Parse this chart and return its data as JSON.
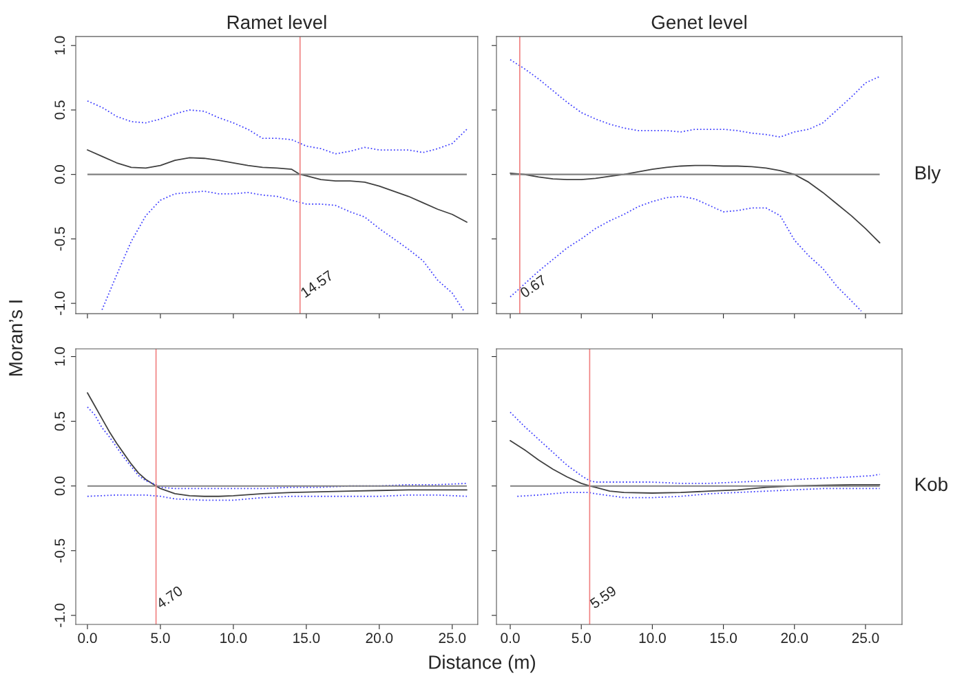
{
  "chart_data": [
    {
      "type": "line",
      "title": "Ramet level",
      "ylabel": "Moran’s I",
      "xlim": [
        -0.8,
        26.75
      ],
      "ylim": [
        -1.08,
        1.07
      ],
      "tick_labels": "y",
      "grid": false,
      "yticks": [
        {
          "value": -1,
          "label": "-1.0"
        },
        {
          "value": -0.5,
          "label": "-0.5"
        },
        {
          "value": 0,
          "label": "0.0"
        },
        {
          "value": 0.5,
          "label": "0.5"
        },
        {
          "value": 1,
          "label": "1.0"
        }
      ],
      "ref_lines": [
        {
          "axis": "y",
          "value": 0,
          "color": "#808080"
        },
        {
          "axis": "x",
          "value": 14.57,
          "label": "14.57",
          "color": "#f08080"
        }
      ],
      "series": [
        {
          "color": "#404040",
          "line_style": "solid",
          "x": [
            0,
            1,
            2,
            3,
            4,
            5,
            6,
            7,
            8,
            9,
            10,
            11,
            12,
            13,
            14,
            14.57,
            15,
            16,
            17,
            18,
            19,
            20,
            21,
            22,
            23,
            24,
            25,
            26
          ],
          "values": [
            0.19,
            0.14,
            0.09,
            0.055,
            0.05,
            0.07,
            0.11,
            0.13,
            0.125,
            0.11,
            0.09,
            0.07,
            0.055,
            0.05,
            0.04,
            0.0,
            -0.01,
            -0.04,
            -0.05,
            -0.05,
            -0.06,
            -0.09,
            -0.13,
            -0.17,
            -0.22,
            -0.27,
            -0.31,
            -0.37
          ]
        },
        {
          "color": "#4040ff",
          "line_style": "dotted",
          "x": [
            0,
            1,
            2,
            3,
            4,
            5,
            6,
            7,
            8,
            9,
            10,
            11,
            12,
            13,
            14,
            15,
            16,
            17,
            18,
            19,
            20,
            21,
            22,
            23,
            24,
            25,
            26
          ],
          "values": [
            0.57,
            0.52,
            0.45,
            0.41,
            0.4,
            0.43,
            0.47,
            0.5,
            0.49,
            0.44,
            0.4,
            0.35,
            0.28,
            0.28,
            0.27,
            0.22,
            0.2,
            0.16,
            0.18,
            0.21,
            0.19,
            0.19,
            0.19,
            0.17,
            0.2,
            0.24,
            0.35
          ]
        },
        {
          "color": "#4040ff",
          "line_style": "dotted",
          "x": [
            1,
            2,
            3,
            4,
            5,
            6,
            7,
            8,
            9,
            10,
            11,
            12,
            13,
            14,
            15,
            16,
            17,
            18,
            19,
            20,
            21,
            22,
            23,
            24,
            25,
            25.8
          ],
          "values": [
            -1.05,
            -0.78,
            -0.52,
            -0.32,
            -0.2,
            -0.15,
            -0.14,
            -0.13,
            -0.15,
            -0.15,
            -0.14,
            -0.16,
            -0.17,
            -0.2,
            -0.23,
            -0.23,
            -0.24,
            -0.29,
            -0.33,
            -0.42,
            -0.5,
            -0.58,
            -0.67,
            -0.82,
            -0.92,
            -1.06
          ]
        }
      ]
    },
    {
      "type": "line",
      "title": "Genet level",
      "annotations": [
        "Bly"
      ],
      "xlim": [
        -0.97,
        27.57
      ],
      "ylim": [
        -1.08,
        1.07
      ],
      "tick_labels": false,
      "grid": false,
      "ref_lines": [
        {
          "axis": "y",
          "value": 0,
          "color": "#808080"
        },
        {
          "axis": "x",
          "value": 0.67,
          "label": "0.67",
          "color": "#f08080"
        }
      ],
      "series": [
        {
          "color": "#404040",
          "line_style": "solid",
          "x": [
            0,
            1,
            2,
            3,
            4,
            5,
            6,
            7,
            8,
            9,
            10,
            11,
            12,
            13,
            14,
            15,
            16,
            17,
            18,
            19,
            20,
            21,
            22,
            23,
            24,
            25,
            26
          ],
          "values": [
            0.01,
            0.0,
            -0.02,
            -0.035,
            -0.04,
            -0.04,
            -0.03,
            -0.015,
            0.0,
            0.02,
            0.04,
            0.055,
            0.065,
            0.07,
            0.07,
            0.065,
            0.065,
            0.06,
            0.05,
            0.03,
            0.0,
            -0.06,
            -0.14,
            -0.23,
            -0.32,
            -0.42,
            -0.53
          ]
        },
        {
          "color": "#4040ff",
          "line_style": "dotted",
          "x": [
            0,
            1,
            2,
            3,
            4,
            5,
            6,
            7,
            8,
            9,
            10,
            11,
            12,
            13,
            14,
            15,
            16,
            17,
            18,
            19,
            20,
            21,
            22,
            23,
            24,
            25,
            26
          ],
          "values": [
            0.89,
            0.82,
            0.74,
            0.65,
            0.56,
            0.48,
            0.43,
            0.39,
            0.36,
            0.34,
            0.34,
            0.34,
            0.33,
            0.35,
            0.35,
            0.35,
            0.34,
            0.32,
            0.31,
            0.29,
            0.33,
            0.35,
            0.4,
            0.5,
            0.6,
            0.71,
            0.76
          ]
        },
        {
          "color": "#4040ff",
          "line_style": "dotted",
          "x": [
            0,
            1,
            2,
            3,
            4,
            5,
            6,
            7,
            8,
            9,
            10,
            11,
            12,
            13,
            14,
            15,
            16,
            17,
            18,
            19,
            20,
            21,
            22,
            23,
            24,
            24.7
          ],
          "values": [
            -0.95,
            -0.85,
            -0.75,
            -0.66,
            -0.57,
            -0.5,
            -0.42,
            -0.36,
            -0.31,
            -0.25,
            -0.21,
            -0.18,
            -0.17,
            -0.19,
            -0.24,
            -0.29,
            -0.28,
            -0.26,
            -0.26,
            -0.32,
            -0.51,
            -0.63,
            -0.73,
            -0.87,
            -0.98,
            -1.06
          ]
        }
      ]
    },
    {
      "type": "line",
      "xlabel": "Distance (m)",
      "xlim": [
        -0.8,
        26.75
      ],
      "ylim": [
        -1.07,
        1.06
      ],
      "grid": false,
      "xticks": [
        {
          "value": 0,
          "label": "0.0"
        },
        {
          "value": 5,
          "label": "5.0"
        },
        {
          "value": 10,
          "label": "10.0"
        },
        {
          "value": 15,
          "label": "15.0"
        },
        {
          "value": 20,
          "label": "20.0"
        },
        {
          "value": 25,
          "label": "25.0"
        }
      ],
      "yticks": [
        {
          "value": -1,
          "label": "-1.0"
        },
        {
          "value": -0.5,
          "label": "-0.5"
        },
        {
          "value": 0,
          "label": "0.0"
        },
        {
          "value": 0.5,
          "label": "0.5"
        },
        {
          "value": 1,
          "label": "1.0"
        }
      ],
      "ref_lines": [
        {
          "axis": "y",
          "value": 0,
          "color": "#808080"
        },
        {
          "axis": "x",
          "value": 4.7,
          "label": "4.70",
          "color": "#f08080"
        }
      ],
      "series": [
        {
          "color": "#404040",
          "line_style": "solid",
          "x": [
            0,
            0.5,
            1,
            1.5,
            2,
            2.5,
            3,
            3.5,
            4,
            4.7,
            5,
            6,
            7,
            8,
            9,
            10,
            12,
            14,
            16,
            18,
            20,
            22,
            24,
            26
          ],
          "values": [
            0.72,
            0.62,
            0.52,
            0.42,
            0.33,
            0.25,
            0.17,
            0.1,
            0.05,
            0.0,
            -0.02,
            -0.06,
            -0.075,
            -0.08,
            -0.08,
            -0.075,
            -0.06,
            -0.05,
            -0.045,
            -0.04,
            -0.035,
            -0.03,
            -0.03,
            -0.03
          ]
        },
        {
          "color": "#4040ff",
          "line_style": "dotted",
          "x": [
            0,
            0.5,
            1,
            1.5,
            2,
            2.5,
            3,
            3.5,
            4,
            4.7,
            5,
            6,
            8,
            10,
            12,
            14,
            16,
            18,
            20,
            22,
            24,
            26
          ],
          "values": [
            0.61,
            0.55,
            0.45,
            0.38,
            0.3,
            0.22,
            0.15,
            0.08,
            0.04,
            0.01,
            -0.01,
            -0.02,
            -0.02,
            -0.02,
            -0.02,
            -0.01,
            -0.01,
            0.0,
            0.0,
            0.01,
            0.01,
            0.02
          ]
        },
        {
          "color": "#4040ff",
          "line_style": "dotted",
          "x": [
            0,
            2,
            4,
            5,
            6,
            8,
            10,
            12,
            14,
            16,
            18,
            20,
            22,
            24,
            26
          ],
          "values": [
            -0.08,
            -0.07,
            -0.07,
            -0.08,
            -0.1,
            -0.11,
            -0.11,
            -0.09,
            -0.08,
            -0.08,
            -0.08,
            -0.08,
            -0.07,
            -0.07,
            -0.08
          ]
        }
      ]
    },
    {
      "type": "line",
      "annotations": [
        "Kob"
      ],
      "xlim": [
        -0.97,
        27.57
      ],
      "ylim": [
        -1.07,
        1.06
      ],
      "tick_labels": "x",
      "grid": false,
      "xticks": [
        {
          "value": 0,
          "label": "0.0"
        },
        {
          "value": 5,
          "label": "5.0"
        },
        {
          "value": 10,
          "label": "10.0"
        },
        {
          "value": 15,
          "label": "15.0"
        },
        {
          "value": 20,
          "label": "20.0"
        },
        {
          "value": 25,
          "label": "25.0"
        }
      ],
      "ref_lines": [
        {
          "axis": "y",
          "value": 0,
          "color": "#808080"
        },
        {
          "axis": "x",
          "value": 5.59,
          "label": "5.59",
          "color": "#f08080"
        }
      ],
      "series": [
        {
          "color": "#404040",
          "line_style": "solid",
          "x": [
            0,
            1,
            2,
            3,
            4,
            5,
            5.59,
            6,
            7,
            8,
            10,
            12,
            14,
            16,
            18,
            20,
            22,
            24,
            26
          ],
          "values": [
            0.35,
            0.28,
            0.2,
            0.13,
            0.07,
            0.02,
            0.0,
            -0.01,
            -0.04,
            -0.05,
            -0.055,
            -0.05,
            -0.04,
            -0.03,
            -0.01,
            0.0,
            0.005,
            0.01,
            0.01
          ]
        },
        {
          "color": "#4040ff",
          "line_style": "dotted",
          "x": [
            0,
            1,
            2,
            3,
            4,
            5,
            5.59,
            6,
            8,
            10,
            12,
            14,
            16,
            18,
            20,
            22,
            24,
            25.5,
            26
          ],
          "values": [
            0.57,
            0.46,
            0.36,
            0.26,
            0.16,
            0.08,
            0.04,
            0.03,
            0.03,
            0.03,
            0.02,
            0.02,
            0.03,
            0.04,
            0.05,
            0.06,
            0.07,
            0.08,
            0.09
          ]
        },
        {
          "color": "#4040ff",
          "line_style": "dotted",
          "x": [
            0.5,
            2,
            4,
            5.5,
            6,
            8,
            10,
            12,
            14,
            16,
            18,
            20,
            22,
            24,
            26
          ],
          "values": [
            -0.08,
            -0.07,
            -0.05,
            -0.05,
            -0.06,
            -0.09,
            -0.09,
            -0.08,
            -0.06,
            -0.05,
            -0.04,
            -0.03,
            -0.02,
            -0.02,
            -0.02
          ]
        }
      ]
    }
  ]
}
